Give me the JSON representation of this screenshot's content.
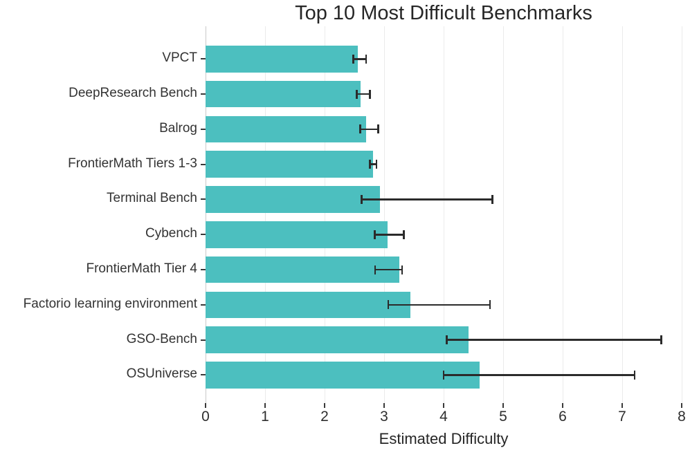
{
  "chart_data": {
    "type": "bar",
    "orientation": "horizontal",
    "title": "Top 10 Most Difficult Benchmarks",
    "xlabel": "Estimated Difficulty",
    "ylabel": "",
    "xlim": [
      0,
      8
    ],
    "xticks": [
      0,
      1,
      2,
      3,
      4,
      5,
      6,
      7,
      8
    ],
    "grid": "vertical-light",
    "legend": "none",
    "categories": [
      "VPCT",
      "DeepResearch Bench",
      "Balrog",
      "FrontierMath Tiers 1-3",
      "Terminal Bench",
      "Cybench",
      "FrontierMath Tier 4",
      "Factorio learning environment",
      "GSO-Bench",
      "OSUniverse"
    ],
    "values": [
      2.56,
      2.61,
      2.7,
      2.81,
      2.93,
      3.06,
      3.26,
      3.44,
      4.42,
      4.61
    ],
    "error_low": [
      2.48,
      2.54,
      2.6,
      2.76,
      2.62,
      2.84,
      2.85,
      3.07,
      4.05,
      4.0
    ],
    "error_high": [
      2.7,
      2.76,
      2.9,
      2.87,
      4.82,
      3.33,
      3.3,
      4.78,
      7.66,
      7.21
    ],
    "colors": {
      "bar": "#4CBFBF",
      "error": "#2b2b2b",
      "grid": "#ebebeb",
      "zero_line": "#c9c9c9",
      "tick": "#3a3a3a",
      "text": "#333333"
    }
  }
}
